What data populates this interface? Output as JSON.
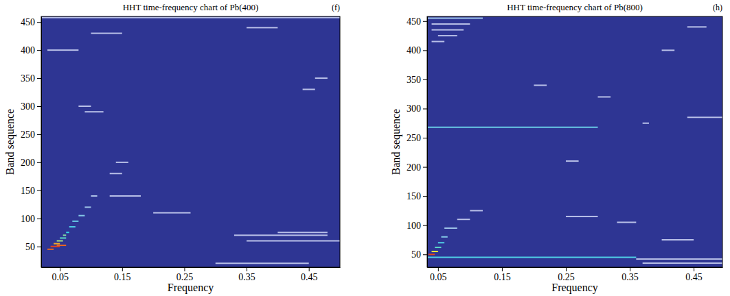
{
  "chart_data": [
    {
      "type": "heatmap",
      "title": "HHT time-frequency chart of Pb(400)",
      "panel_label": "(f)",
      "x_label": "Frequency",
      "y_label": "Band sequence",
      "xlim": [
        0.02,
        0.5
      ],
      "ylim": [
        13,
        460
      ],
      "xticks": [
        0.05,
        0.15,
        0.25,
        0.35,
        0.45
      ],
      "yticks": [
        50,
        100,
        150,
        200,
        250,
        300,
        350,
        400,
        450
      ],
      "zlim": [
        0,
        1
      ],
      "color": "#2e3593",
      "segments": [
        {
          "x0": 0.03,
          "x1": 0.04,
          "y": 45,
          "value": 0.9
        },
        {
          "x0": 0.035,
          "x1": 0.05,
          "y": 50,
          "value": 0.95
        },
        {
          "x0": 0.045,
          "x1": 0.06,
          "y": 52,
          "value": 0.9
        },
        {
          "x0": 0.04,
          "x1": 0.05,
          "y": 55,
          "value": 0.8
        },
        {
          "x0": 0.045,
          "x1": 0.055,
          "y": 60,
          "value": 0.6
        },
        {
          "x0": 0.05,
          "x1": 0.06,
          "y": 65,
          "value": 0.5
        },
        {
          "x0": 0.055,
          "x1": 0.06,
          "y": 70,
          "value": 0.55
        },
        {
          "x0": 0.06,
          "x1": 0.065,
          "y": 75,
          "value": 0.45
        },
        {
          "x0": 0.065,
          "x1": 0.075,
          "y": 85,
          "value": 0.4
        },
        {
          "x0": 0.07,
          "x1": 0.08,
          "y": 95,
          "value": 0.35
        },
        {
          "x0": 0.08,
          "x1": 0.09,
          "y": 105,
          "value": 0.3
        },
        {
          "x0": 0.09,
          "x1": 0.1,
          "y": 120,
          "value": 0.25
        },
        {
          "x0": 0.1,
          "x1": 0.11,
          "y": 140,
          "value": 0.22
        },
        {
          "x0": 0.02,
          "x1": 0.5,
          "y": 458,
          "value": 0.2
        },
        {
          "x0": 0.03,
          "x1": 0.08,
          "y": 400,
          "value": 0.2
        },
        {
          "x0": 0.08,
          "x1": 0.1,
          "y": 300,
          "value": 0.2
        },
        {
          "x0": 0.09,
          "x1": 0.12,
          "y": 290,
          "value": 0.2
        },
        {
          "x0": 0.14,
          "x1": 0.16,
          "y": 200,
          "value": 0.2
        },
        {
          "x0": 0.13,
          "x1": 0.15,
          "y": 180,
          "value": 0.2
        },
        {
          "x0": 0.13,
          "x1": 0.18,
          "y": 140,
          "value": 0.2
        },
        {
          "x0": 0.2,
          "x1": 0.26,
          "y": 110,
          "value": 0.2
        },
        {
          "x0": 0.33,
          "x1": 0.48,
          "y": 70,
          "value": 0.2
        },
        {
          "x0": 0.35,
          "x1": 0.5,
          "y": 60,
          "value": 0.2
        },
        {
          "x0": 0.4,
          "x1": 0.48,
          "y": 75,
          "value": 0.2
        },
        {
          "x0": 0.3,
          "x1": 0.45,
          "y": 20,
          "value": 0.2
        },
        {
          "x0": 0.1,
          "x1": 0.15,
          "y": 430,
          "value": 0.2
        },
        {
          "x0": 0.35,
          "x1": 0.4,
          "y": 440,
          "value": 0.2
        },
        {
          "x0": 0.46,
          "x1": 0.48,
          "y": 350,
          "value": 0.2
        },
        {
          "x0": 0.44,
          "x1": 0.46,
          "y": 330,
          "value": 0.2
        }
      ]
    },
    {
      "type": "heatmap",
      "title": "HHT time-frequency chart of Pb(800)",
      "panel_label": "(h)",
      "x_label": "Frequency",
      "y_label": "Band sequence",
      "xlim": [
        0.033,
        0.495
      ],
      "ylim": [
        28,
        458
      ],
      "xticks": [
        0.05,
        0.15,
        0.25,
        0.35,
        0.45
      ],
      "yticks": [
        50,
        100,
        150,
        200,
        250,
        300,
        350,
        400,
        450
      ],
      "zlim": [
        0,
        1
      ],
      "color": "#2e3593",
      "segments": [
        {
          "x0": 0.033,
          "x1": 0.3,
          "y": 268,
          "value": 0.35
        },
        {
          "x0": 0.033,
          "x1": 0.36,
          "y": 45,
          "value": 0.4
        },
        {
          "x0": 0.36,
          "x1": 0.495,
          "y": 42,
          "value": 0.2
        },
        {
          "x0": 0.035,
          "x1": 0.045,
          "y": 50,
          "value": 0.95
        },
        {
          "x0": 0.04,
          "x1": 0.05,
          "y": 55,
          "value": 0.7
        },
        {
          "x0": 0.045,
          "x1": 0.055,
          "y": 62,
          "value": 0.5
        },
        {
          "x0": 0.05,
          "x1": 0.06,
          "y": 70,
          "value": 0.4
        },
        {
          "x0": 0.055,
          "x1": 0.065,
          "y": 80,
          "value": 0.3
        },
        {
          "x0": 0.06,
          "x1": 0.08,
          "y": 95,
          "value": 0.25
        },
        {
          "x0": 0.08,
          "x1": 0.1,
          "y": 110,
          "value": 0.2
        },
        {
          "x0": 0.1,
          "x1": 0.12,
          "y": 125,
          "value": 0.2
        },
        {
          "x0": 0.033,
          "x1": 0.12,
          "y": 455,
          "value": 0.25
        },
        {
          "x0": 0.04,
          "x1": 0.1,
          "y": 445,
          "value": 0.2
        },
        {
          "x0": 0.04,
          "x1": 0.09,
          "y": 435,
          "value": 0.2
        },
        {
          "x0": 0.05,
          "x1": 0.08,
          "y": 425,
          "value": 0.2
        },
        {
          "x0": 0.04,
          "x1": 0.06,
          "y": 415,
          "value": 0.2
        },
        {
          "x0": 0.2,
          "x1": 0.22,
          "y": 340,
          "value": 0.2
        },
        {
          "x0": 0.3,
          "x1": 0.32,
          "y": 320,
          "value": 0.2
        },
        {
          "x0": 0.25,
          "x1": 0.27,
          "y": 210,
          "value": 0.2
        },
        {
          "x0": 0.25,
          "x1": 0.3,
          "y": 115,
          "value": 0.2
        },
        {
          "x0": 0.33,
          "x1": 0.36,
          "y": 105,
          "value": 0.2
        },
        {
          "x0": 0.4,
          "x1": 0.45,
          "y": 75,
          "value": 0.2
        },
        {
          "x0": 0.44,
          "x1": 0.495,
          "y": 285,
          "value": 0.2
        },
        {
          "x0": 0.37,
          "x1": 0.38,
          "y": 275,
          "value": 0.2
        },
        {
          "x0": 0.44,
          "x1": 0.47,
          "y": 440,
          "value": 0.2
        },
        {
          "x0": 0.4,
          "x1": 0.42,
          "y": 400,
          "value": 0.2
        },
        {
          "x0": 0.37,
          "x1": 0.495,
          "y": 35,
          "value": 0.2
        }
      ]
    }
  ]
}
